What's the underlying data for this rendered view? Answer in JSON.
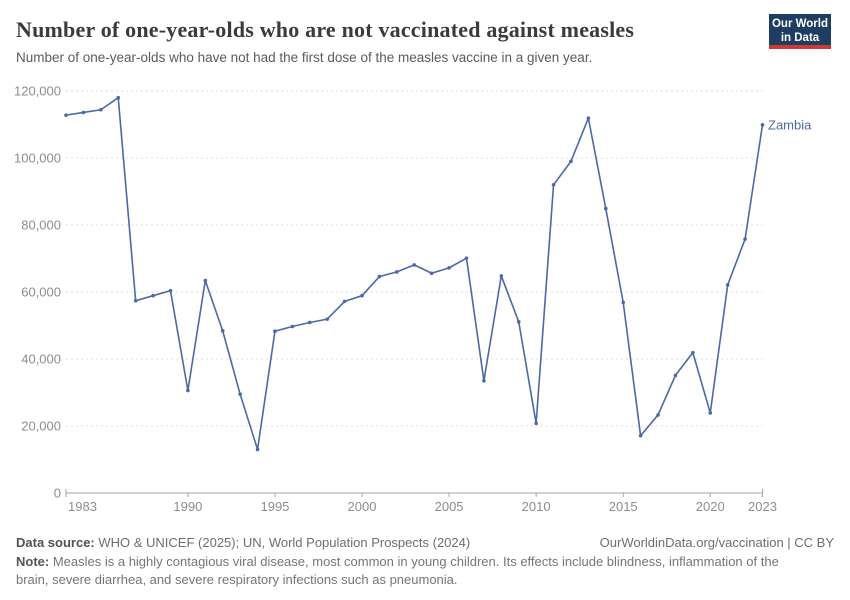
{
  "header": {
    "title": "Number of one-year-olds who are not vaccinated against measles",
    "subtitle": "Number of one-year-olds who have not had the first dose of the measles vaccine in a given year.",
    "logo": {
      "line1": "Our World",
      "line2": "in Data",
      "bg_color": "#1d3d63",
      "accent_color": "#d13832"
    }
  },
  "chart_data": {
    "type": "line",
    "title": "Number of one-year-olds who are not vaccinated against measles",
    "xlabel": "",
    "ylabel": "",
    "xlim": [
      1983,
      2023
    ],
    "ylim": [
      0,
      120000
    ],
    "x_ticks": [
      1983,
      1990,
      1995,
      2000,
      2005,
      2010,
      2015,
      2020,
      2023
    ],
    "y_ticks": [
      0,
      20000,
      40000,
      60000,
      80000,
      100000,
      120000
    ],
    "grid": "horizontal-dashed",
    "legend_position": "end-of-line-label",
    "end_label": "Zambia",
    "series": [
      {
        "name": "Zambia",
        "color": "#4c69a5",
        "x": [
          1983,
          1984,
          1985,
          1986,
          1987,
          1988,
          1989,
          1990,
          1991,
          1992,
          1993,
          1994,
          1995,
          1996,
          1997,
          1998,
          1999,
          2000,
          2001,
          2002,
          2003,
          2004,
          2005,
          2006,
          2007,
          2008,
          2009,
          2010,
          2011,
          2012,
          2013,
          2014,
          2015,
          2016,
          2017,
          2018,
          2019,
          2020,
          2021,
          2022,
          2023
        ],
        "values": [
          112800,
          113600,
          114400,
          118000,
          57400,
          58900,
          60400,
          30600,
          63400,
          48400,
          29500,
          13000,
          48300,
          49700,
          50900,
          51900,
          57200,
          58900,
          64600,
          66000,
          68100,
          65600,
          67200,
          70100,
          33500,
          64800,
          51100,
          20800,
          92000,
          99000,
          111900,
          84900,
          56900,
          17100,
          23300,
          35100,
          41900,
          23900,
          62100,
          75800,
          109900
        ]
      }
    ]
  },
  "axis_style": {
    "tick_color": "#8d8d8d",
    "grid_color": "#dcdcdc",
    "axis_color": "#a5a5a5"
  },
  "footer": {
    "datasource_label": "Data source:",
    "datasource_text": " WHO & UNICEF (2025); UN, World Population Prospects (2024)",
    "link_text": "OurWorldinData.org/vaccination | CC BY",
    "note_label": "Note:",
    "note_text": " Measles is a highly contagious viral disease, most common in young children. Its effects include blindness, inflammation of the brain, severe diarrhea, and severe respiratory infections such as pneumonia."
  }
}
